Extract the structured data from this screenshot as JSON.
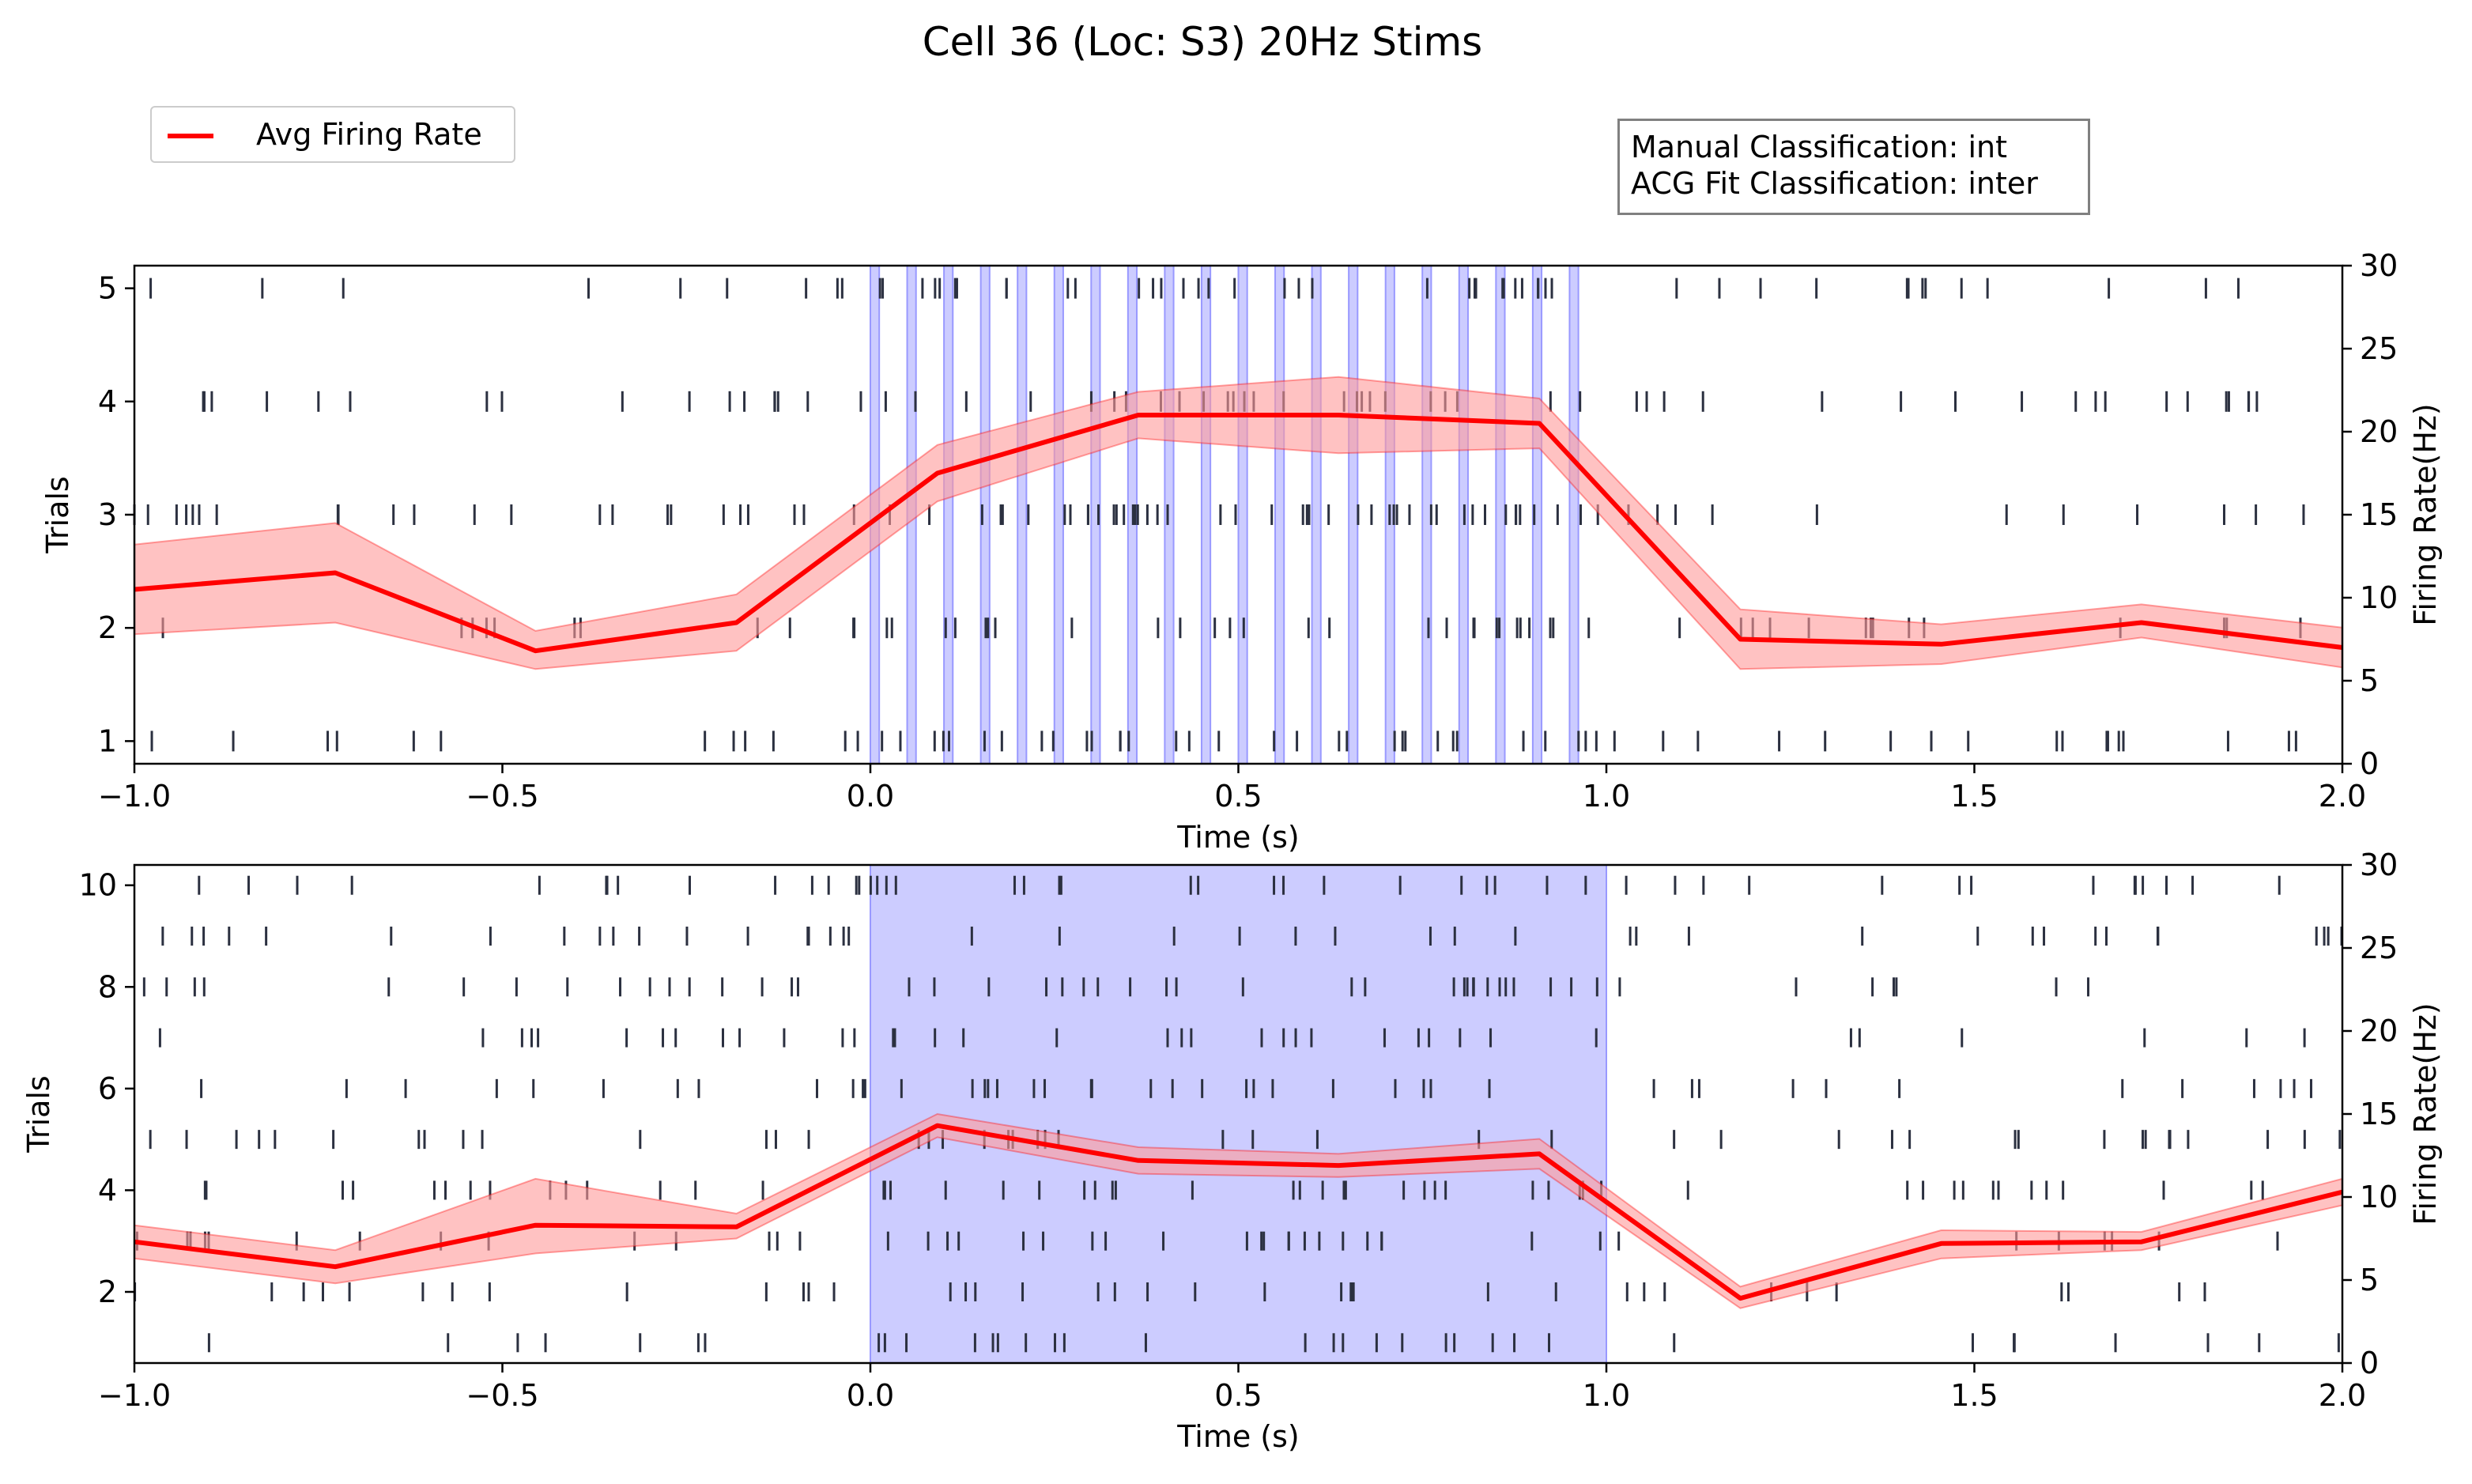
{
  "figure": {
    "title": "Cell 36 (Loc: S3) 20Hz Stims",
    "legend_label": "Avg Firing Rate",
    "classification": {
      "manual": "Manual Classification: int",
      "acg_fit": "ACG Fit Classification: inter"
    }
  },
  "colors": {
    "rate_line": "#ff0000",
    "rate_band": "#ff9999",
    "stim": "#9999ff",
    "raster": "#2b3040"
  },
  "chart_data": [
    {
      "type": "line",
      "title": "",
      "xlabel": "Time (s)",
      "ylabel": "Trials",
      "y2label": "Firing Rate(Hz)",
      "xlim": [
        -1.0,
        2.0
      ],
      "ylim": [
        0.8,
        5.2
      ],
      "y2lim": [
        0,
        30
      ],
      "xticks": [
        -1.0,
        -0.5,
        0.0,
        0.5,
        1.0,
        1.5,
        2.0
      ],
      "yticks": [
        1,
        2,
        3,
        4,
        5
      ],
      "y2ticks": [
        0,
        5,
        10,
        15,
        20,
        25,
        30
      ],
      "stimulus": {
        "type": "pulse_train",
        "frequency_hz": 20,
        "start": 0.0,
        "end": 1.0,
        "pulse_width": 0.012,
        "onsets": [
          0.0,
          0.05,
          0.1,
          0.15,
          0.2,
          0.25,
          0.3,
          0.35,
          0.4,
          0.45,
          0.5,
          0.55,
          0.6,
          0.65,
          0.7,
          0.75,
          0.8,
          0.85,
          0.9,
          0.95
        ]
      },
      "series": [
        {
          "name": "Avg Firing Rate",
          "x": [
            -1.0,
            -0.727,
            -0.455,
            -0.182,
            0.091,
            0.364,
            0.636,
            0.909,
            1.182,
            1.455,
            1.727,
            2.0
          ],
          "y": [
            10.5,
            11.5,
            6.8,
            8.5,
            17.5,
            21.0,
            21.0,
            20.5,
            7.5,
            7.2,
            8.5,
            7.0
          ],
          "y_lower": [
            7.8,
            8.5,
            5.7,
            6.8,
            15.8,
            19.6,
            18.7,
            19.0,
            5.7,
            6.0,
            7.6,
            5.8
          ],
          "y_upper": [
            13.2,
            14.5,
            8.0,
            10.2,
            19.2,
            22.4,
            23.3,
            22.0,
            9.3,
            8.4,
            9.6,
            8.2
          ]
        }
      ]
    },
    {
      "type": "line",
      "title": "",
      "xlabel": "Time (s)",
      "ylabel": "Trials",
      "y2label": "Firing Rate(Hz)",
      "xlim": [
        -1.0,
        2.0
      ],
      "ylim": [
        0.6,
        10.4
      ],
      "y2lim": [
        0,
        30
      ],
      "xticks": [
        -1.0,
        -0.5,
        0.0,
        0.5,
        1.0,
        1.5,
        2.0
      ],
      "yticks": [
        2,
        4,
        6,
        8,
        10
      ],
      "y2ticks": [
        0,
        5,
        10,
        15,
        20,
        25,
        30
      ],
      "stimulus": {
        "type": "continuous",
        "start": 0.0,
        "end": 1.0
      },
      "series": [
        {
          "name": "Avg Firing Rate",
          "x": [
            -1.0,
            -0.727,
            -0.455,
            -0.182,
            0.091,
            0.364,
            0.636,
            0.909,
            1.182,
            1.455,
            1.727,
            2.0
          ],
          "y": [
            7.3,
            5.8,
            8.3,
            8.2,
            14.3,
            12.2,
            11.9,
            12.6,
            3.9,
            7.2,
            7.3,
            10.3
          ],
          "y_lower": [
            6.3,
            4.8,
            6.6,
            7.5,
            13.6,
            11.4,
            11.2,
            11.7,
            3.3,
            6.3,
            6.8,
            9.5
          ],
          "y_upper": [
            8.3,
            6.8,
            11.1,
            9.0,
            15.0,
            13.0,
            12.6,
            13.5,
            4.6,
            8.0,
            7.9,
            11.1
          ]
        }
      ]
    }
  ]
}
